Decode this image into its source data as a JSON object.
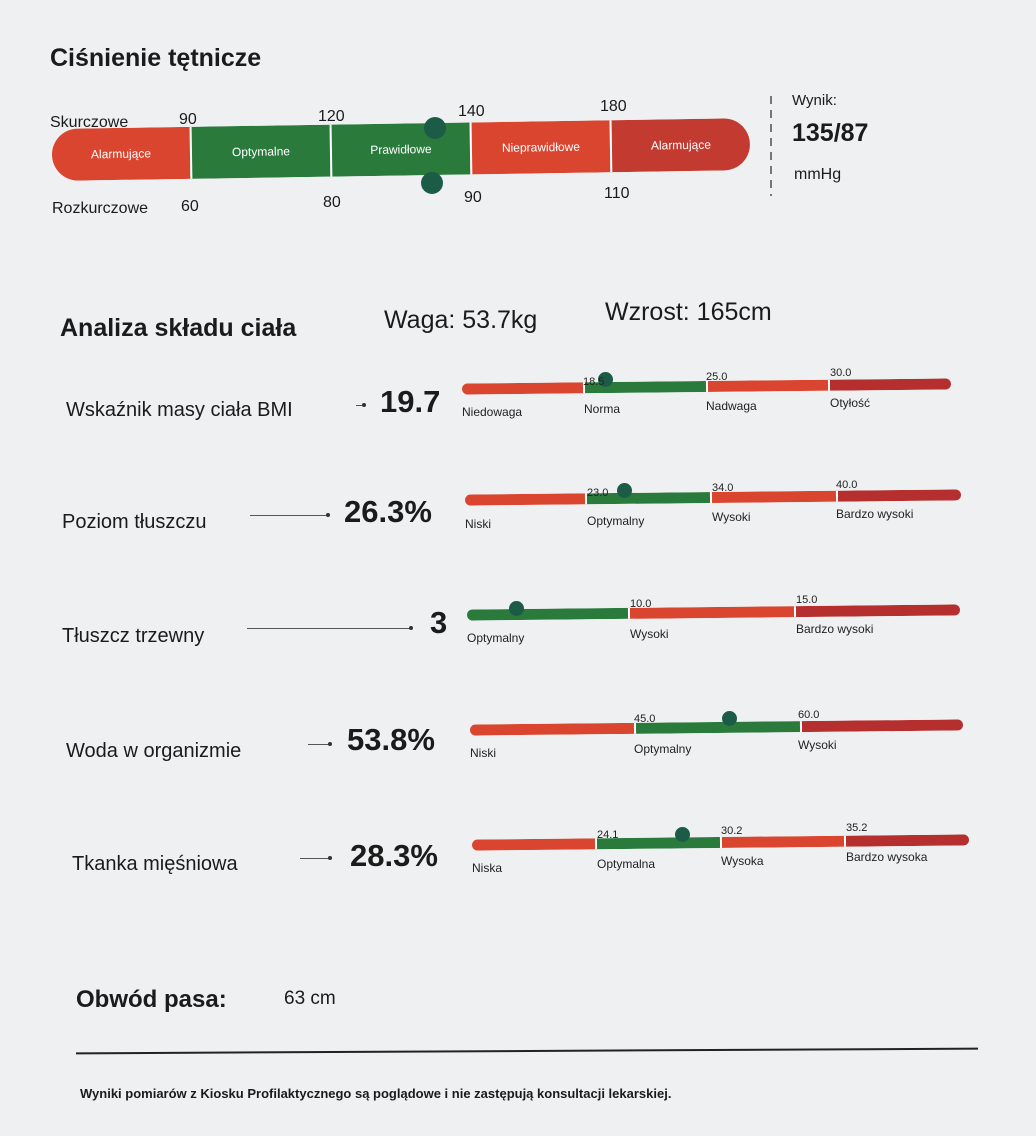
{
  "bp": {
    "title": "Ciśnienie tętnicze",
    "systolic_label": "Skurczowe",
    "diastolic_label": "Rozkurczowe",
    "systolic_ticks": [
      "90",
      "120",
      "140",
      "180"
    ],
    "diastolic_ticks": [
      "60",
      "80",
      "90",
      "110"
    ],
    "segments": [
      "Alarmujące",
      "Optymalne",
      "Prawidłowe",
      "Nieprawidłowe",
      "Alarmujące"
    ],
    "result_label": "Wynik:",
    "result_value": "135/87",
    "result_unit": "mmHg",
    "systolic_value": 135,
    "diastolic_value": 87
  },
  "body": {
    "title": "Analiza składu ciała",
    "weight": "Waga: 53.7kg",
    "height": "Wzrost: 165cm"
  },
  "metrics": [
    {
      "label": "Wskaźnik masy ciała BMI",
      "value": "19.7",
      "thresholds": [
        "18.5",
        "25.0",
        "30.0"
      ],
      "zones": [
        "Niedowaga",
        "Norma",
        "Nadwaga",
        "Otyłość"
      ],
      "marker_value": 19.7
    },
    {
      "label": "Poziom tłuszczu",
      "value": "26.3%",
      "thresholds": [
        "23.0",
        "34.0",
        "40.0"
      ],
      "zones": [
        "Niski",
        "Optymalny",
        "Wysoki",
        "Bardzo wysoki"
      ],
      "marker_value": 26.3
    },
    {
      "label": "Tłuszcz trzewny",
      "value": "3",
      "thresholds": [
        "10.0",
        "15.0"
      ],
      "zones": [
        "Optymalny",
        "Wysoki",
        "Bardzo wysoki"
      ],
      "marker_value": 3
    },
    {
      "label": "Woda w organizmie",
      "value": "53.8%",
      "thresholds": [
        "45.0",
        "60.0"
      ],
      "zones": [
        "Niski",
        "Optymalny",
        "Wysoki"
      ],
      "marker_value": 53.8
    },
    {
      "label": "Tkanka mięśniowa",
      "value": "28.3%",
      "thresholds": [
        "24.1",
        "30.2",
        "35.2"
      ],
      "zones": [
        "Niska",
        "Optymalna",
        "Wysoka",
        "Bardzo wysoka"
      ],
      "marker_value": 28.3
    }
  ],
  "waist": {
    "label": "Obwód pasa:",
    "value": "63 cm"
  },
  "disclaimer": "Wyniki pomiarów z Kiosku Profilaktycznego są poglądowe i nie zastępują konsultacji lekarskiej.",
  "colors": {
    "red": "#d9452f",
    "green": "#2a7a3c",
    "dark_red": "#b52f2f",
    "marker": "#1c5c47"
  }
}
